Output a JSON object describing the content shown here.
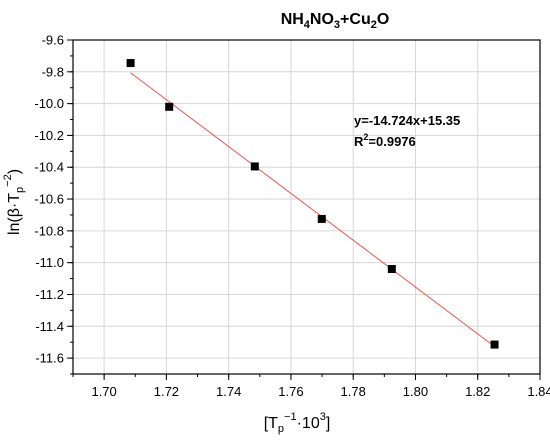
{
  "chart_data": {
    "type": "scatter",
    "title_parts": {
      "a": "NH",
      "a_sub": "4",
      "b": "NO",
      "b_sub": "3",
      "c": "+Cu",
      "c_sub": "2",
      "d": "O"
    },
    "xlabel_parts": {
      "open": "[T",
      "sub": "p",
      "sup": "−1",
      "mid": "·10",
      "sup2": "3",
      "close": "]"
    },
    "ylabel_parts": {
      "open": "ln(β·T",
      "sub": "p",
      "sup": "−2",
      "close": ")"
    },
    "equation": "y=-14.724x+15.35",
    "r2_parts": {
      "base": "R",
      "sup": "2",
      "rest": "=0.9976"
    },
    "xlim": [
      1.69,
      1.84
    ],
    "ylim": [
      -11.7,
      -9.6
    ],
    "xticks": [
      "1.70",
      "1.72",
      "1.74",
      "1.76",
      "1.78",
      "1.80",
      "1.82",
      "1.84"
    ],
    "yticks": [
      "-9.6",
      "-9.8",
      "-10.0",
      "-10.2",
      "-10.4",
      "-10.6",
      "-10.8",
      "-11.0",
      "-11.2",
      "-11.4",
      "-11.6"
    ],
    "grid": true,
    "series": [
      {
        "marker": "square",
        "color": "#000000",
        "x": [
          1.7085,
          1.7209,
          1.7484,
          1.7699,
          1.7924,
          1.8254
        ],
        "y": [
          -9.745,
          -10.02,
          -10.395,
          -10.725,
          -11.04,
          -11.515
        ]
      }
    ],
    "fit_line": {
      "slope": -14.724,
      "intercept": 15.35,
      "x_range": [
        1.7085,
        1.8254
      ],
      "color": "#e8554a"
    }
  }
}
